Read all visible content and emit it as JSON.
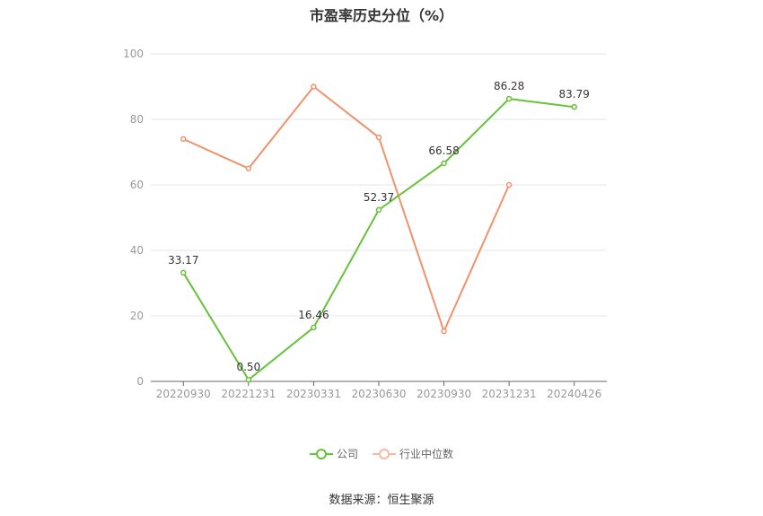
{
  "chart_data": {
    "type": "line",
    "title": "市盈率历史分位（%）",
    "categories": [
      "20220930",
      "20221231",
      "20230331",
      "20230630",
      "20230930",
      "20231231",
      "20240426"
    ],
    "ylim": [
      0,
      100
    ],
    "yticks": [
      0,
      20,
      40,
      60,
      80,
      100
    ],
    "grid": true,
    "legend_position": "bottom",
    "series": [
      {
        "name": "公司",
        "color": "#67c23a",
        "values": [
          33.17,
          0.5,
          16.46,
          52.37,
          66.58,
          86.28,
          83.79
        ],
        "labels": [
          "33.17",
          "0.50",
          "16.46",
          "52.37",
          "66.58",
          "86.28",
          "83.79"
        ]
      },
      {
        "name": "行业中位数",
        "color": "#f0926a",
        "values": [
          74,
          65,
          90,
          74.5,
          15.3,
          60,
          null
        ]
      }
    ]
  },
  "legend": {
    "company_label": "公司",
    "industry_label": "行业中位数"
  },
  "source": "数据来源：恒生聚源"
}
